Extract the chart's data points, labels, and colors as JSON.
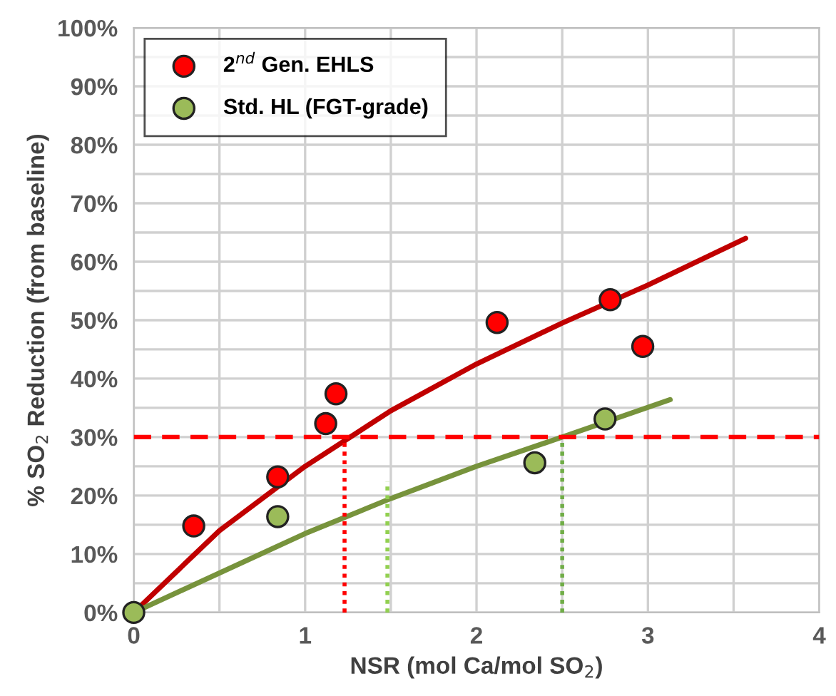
{
  "chart_data": {
    "type": "scatter",
    "xlabel": "NSR (mol Ca/mol SO$_{2}$)",
    "ylabel": "% SO$_{2}$ Reduction (from baseline)",
    "xlim": [
      0,
      4
    ],
    "ylim": [
      0,
      100
    ],
    "xticks": [
      0,
      {
        "value": 0.5,
        "label": null
      },
      1,
      {
        "value": 1.5,
        "label": null
      },
      2,
      {
        "value": 2.5,
        "label": null
      },
      3,
      {
        "value": 3.5,
        "label": null
      },
      4
    ],
    "yticks": [
      {
        "value": 0,
        "label": "0%"
      },
      {
        "value": 5,
        "label": null
      },
      {
        "value": 10,
        "label": "10%"
      },
      {
        "value": 15,
        "label": null
      },
      {
        "value": 20,
        "label": "20%"
      },
      {
        "value": 25,
        "label": null
      },
      {
        "value": 30,
        "label": "30%"
      },
      {
        "value": 35,
        "label": null
      },
      {
        "value": 40,
        "label": "40%"
      },
      {
        "value": 45,
        "label": null
      },
      {
        "value": 50,
        "label": "50%"
      },
      {
        "value": 55,
        "label": null
      },
      {
        "value": 60,
        "label": "60%"
      },
      {
        "value": 65,
        "label": null
      },
      {
        "value": 70,
        "label": "70%"
      },
      {
        "value": 75,
        "label": null
      },
      {
        "value": 80,
        "label": "80%"
      },
      {
        "value": 85,
        "label": null
      },
      {
        "value": 90,
        "label": "90%"
      },
      {
        "value": 95,
        "label": null
      },
      {
        "value": 100,
        "label": "100%"
      }
    ],
    "grid": true,
    "legend": "top left",
    "ref_lines": [
      {
        "axis": "y",
        "value": 30,
        "color": "#ff0000",
        "line_style": "dashed"
      }
    ],
    "series": [
      {
        "type": "line",
        "color": "#c00000",
        "x": [
          0,
          0.5,
          1,
          1.5,
          2,
          2.5,
          3,
          3.57
        ],
        "values": [
          0,
          14,
          25,
          34.5,
          42.5,
          49.5,
          56,
          64
        ],
        "line_style": "solid"
      },
      {
        "type": "line",
        "color": "#77933c",
        "x": [
          0,
          1,
          1.5,
          2,
          2.5,
          3.13
        ],
        "values": [
          0,
          13.5,
          19.5,
          25,
          30,
          36.4
        ],
        "line_style": "solid"
      },
      {
        "type": "line",
        "color": "#ff0000",
        "x": [
          1.23,
          1.23
        ],
        "values": [
          0,
          30
        ],
        "line_style": "dotted"
      },
      {
        "type": "line",
        "color": "#92d050",
        "x": [
          1.48,
          1.48
        ],
        "values": [
          0,
          22.4
        ],
        "line_style": "dotted"
      },
      {
        "type": "line",
        "color": "#70ad47",
        "x": [
          2.5,
          2.5
        ],
        "values": [
          0,
          30
        ],
        "line_style": "dotted"
      },
      {
        "name": "2$^{nd}$ Gen. EHLS",
        "color": "#ff0000",
        "marker": "circle",
        "x": [
          0.35,
          0.84,
          1.12,
          1.18,
          2.12,
          2.78,
          2.97
        ],
        "values": [
          14.8,
          23.2,
          32.3,
          37.4,
          49.6,
          53.5,
          45.5
        ]
      },
      {
        "name": "Std. HL (FGT-grade)",
        "color": "#9bbb59",
        "marker": "circle",
        "x": [
          0,
          0.84,
          2.34,
          2.75
        ],
        "values": [
          0,
          16.4,
          25.6,
          33.1
        ]
      }
    ]
  }
}
